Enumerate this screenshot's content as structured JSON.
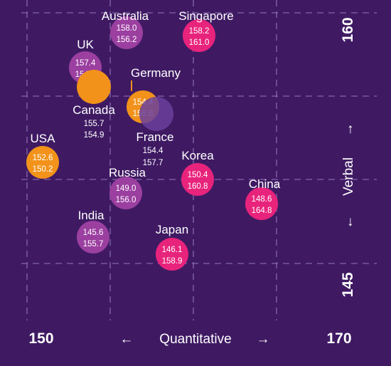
{
  "chart_data": {
    "type": "scatter",
    "xlabel": "Quantitative",
    "ylabel": "Verbal",
    "xlim": [
      150,
      170
    ],
    "ylim": [
      145,
      160
    ],
    "x_ticks": [
      "150",
      "170"
    ],
    "y_ticks": [
      "145",
      "160"
    ],
    "grid": true,
    "colors": {
      "background": "#3f1a63",
      "grid": "#8a6fb0",
      "purple": "#9b3fa0",
      "orange": "#f2921a",
      "pink": "#e8237c"
    },
    "points": [
      {
        "name": "Australia",
        "verbal": "158.0",
        "quant": "156.2",
        "color": "purple"
      },
      {
        "name": "Singapore",
        "verbal": "158.2",
        "quant": "161.0",
        "color": "pink"
      },
      {
        "name": "UK",
        "verbal": "157.4",
        "quant": "154.6",
        "color": "purple"
      },
      {
        "name": "Germany",
        "verbal": "154.4",
        "quant": "156.6",
        "color": "orange"
      },
      {
        "name": "Canada",
        "verbal": "155.7",
        "quant": "154.9",
        "color": "orange"
      },
      {
        "name": "France",
        "verbal": "154.4",
        "quant": "157.7",
        "color": "purple"
      },
      {
        "name": "USA",
        "verbal": "152.6",
        "quant": "150.2",
        "color": "orange"
      },
      {
        "name": "Korea",
        "verbal": "150.4",
        "quant": "160.8",
        "color": "pink"
      },
      {
        "name": "Russia",
        "verbal": "149.0",
        "quant": "156.0",
        "color": "purple"
      },
      {
        "name": "China",
        "verbal": "148.6",
        "quant": "164.8",
        "color": "pink"
      },
      {
        "name": "India",
        "verbal": "145.6",
        "quant": "155.7",
        "color": "purple"
      },
      {
        "name": "Japan",
        "verbal": "146.1",
        "quant": "158.9",
        "color": "pink"
      }
    ]
  }
}
